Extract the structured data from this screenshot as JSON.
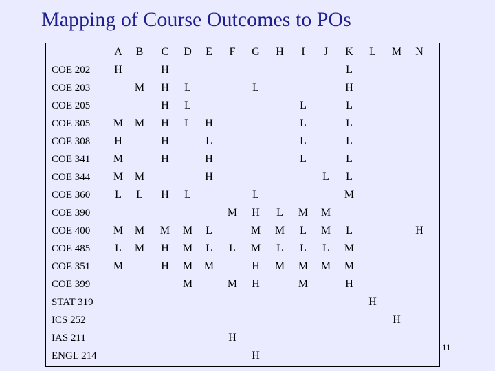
{
  "title": "Mapping of Course Outcomes to POs",
  "columns": [
    "A",
    "B",
    "C",
    "D",
    "E",
    "F",
    "G",
    "H",
    "I",
    "J",
    "K",
    "L",
    "M",
    "N"
  ],
  "rows": [
    {
      "code": "COE 202",
      "cells": [
        "H",
        "",
        "H",
        "",
        "",
        "",
        "",
        "",
        "",
        "",
        "L",
        "",
        "",
        ""
      ]
    },
    {
      "code": "COE 203",
      "cells": [
        "",
        "M",
        "H",
        "L",
        "",
        "",
        "L",
        "",
        "",
        "",
        "H",
        "",
        "",
        ""
      ]
    },
    {
      "code": "COE 205",
      "cells": [
        "",
        "",
        "H",
        "L",
        "",
        "",
        "",
        "",
        "L",
        "",
        "L",
        "",
        "",
        ""
      ]
    },
    {
      "code": "COE 305",
      "cells": [
        "M",
        "M",
        "H",
        "L",
        "H",
        "",
        "",
        "",
        "L",
        "",
        "L",
        "",
        "",
        ""
      ]
    },
    {
      "code": "COE 308",
      "cells": [
        "H",
        "",
        "H",
        "",
        "L",
        "",
        "",
        "",
        "L",
        "",
        "L",
        "",
        "",
        ""
      ]
    },
    {
      "code": "COE 341",
      "cells": [
        "M",
        "",
        "H",
        "",
        "H",
        "",
        "",
        "",
        "L",
        "",
        "L",
        "",
        "",
        ""
      ]
    },
    {
      "code": "COE 344",
      "cells": [
        "M",
        "M",
        "",
        "",
        "H",
        "",
        "",
        "",
        "",
        "L",
        "L",
        "",
        "",
        ""
      ]
    },
    {
      "code": "COE 360",
      "cells": [
        "L",
        "L",
        "H",
        "L",
        "",
        "",
        "L",
        "",
        "",
        "",
        "M",
        "",
        "",
        ""
      ]
    },
    {
      "code": "COE 390",
      "cells": [
        "",
        "",
        "",
        "",
        "",
        "M",
        "H",
        "L",
        "M",
        "M",
        "",
        "",
        "",
        ""
      ]
    },
    {
      "code": "COE 400",
      "cells": [
        "M",
        "M",
        "M",
        "M",
        "L",
        "",
        "M",
        "M",
        "L",
        "M",
        "L",
        "",
        "",
        "H"
      ]
    },
    {
      "code": "COE 485",
      "cells": [
        "L",
        "M",
        "H",
        "M",
        "L",
        "L",
        "M",
        "L",
        "L",
        "L",
        "M",
        "",
        "",
        ""
      ]
    },
    {
      "code": "COE 351",
      "cells": [
        "M",
        "",
        "H",
        "M",
        "M",
        "",
        "H",
        "M",
        "M",
        "M",
        "M",
        "",
        "",
        ""
      ]
    },
    {
      "code": "COE 399",
      "cells": [
        "",
        "",
        "",
        "M",
        "",
        "M",
        "H",
        "",
        "M",
        "",
        "H",
        "",
        "",
        ""
      ]
    },
    {
      "code": "STAT 319",
      "cells": [
        "",
        "",
        "",
        "",
        "",
        "",
        "",
        "",
        "",
        "",
        "",
        "H",
        "",
        ""
      ]
    },
    {
      "code": "ICS 252",
      "cells": [
        "",
        "",
        "",
        "",
        "",
        "",
        "",
        "",
        "",
        "",
        "",
        "",
        "H",
        ""
      ]
    },
    {
      "code": "IAS 211",
      "cells": [
        "",
        "",
        "",
        "",
        "",
        "H",
        "",
        "",
        "",
        "",
        "",
        "",
        "",
        ""
      ]
    },
    {
      "code": "ENGL 214",
      "cells": [
        "",
        "",
        "",
        "",
        "",
        "",
        "H",
        "",
        "",
        "",
        "",
        "",
        "",
        ""
      ]
    }
  ],
  "page_number": "11"
}
